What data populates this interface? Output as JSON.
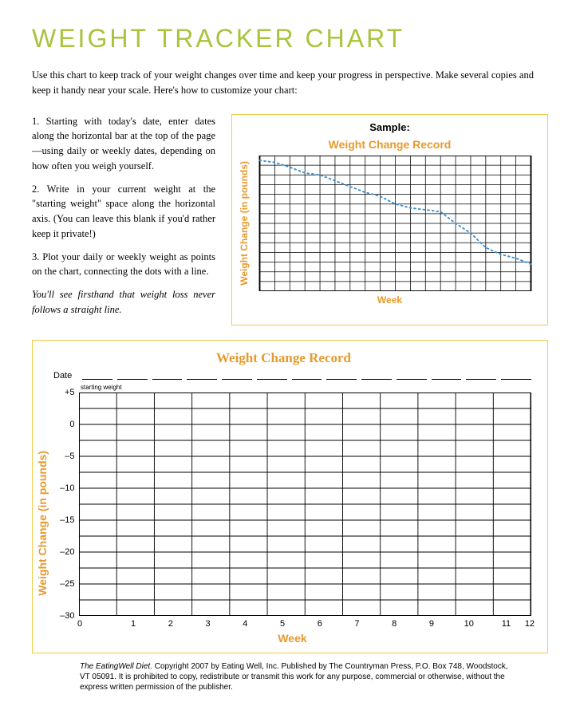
{
  "title": "WEIGHT TRACKER CHART",
  "title_color": "#a8c43c",
  "intro": "Use this chart to keep track of your weight changes over time and keep your progress in perspective. Make several copies and keep it handy near your scale. Here's how to customize your chart:",
  "instructions": {
    "p1": "1. Starting with today's date, enter dates along the horizontal bar at the top of the page—using daily or weekly dates, depending on how often you weigh yourself.",
    "p2": "2. Write in your current weight at the \"starting weight\" space along the horizontal axis. (You can leave this blank if you'd rather keep it private!)",
    "p3": "3. Plot your daily or weekly weight as points on the chart, connecting the dots with a line.",
    "italic": "You'll see firsthand that weight loss never follows a straight line."
  },
  "sample": {
    "label": "Sample:",
    "chart_title": "Weight Change Record",
    "chart_title_color": "#e69a2e",
    "y_axis": "Weight Change (in pounds)",
    "y_axis_color": "#e69a2e",
    "x_axis": "Week",
    "x_axis_color": "#e69a2e",
    "grid": {
      "cols": 18,
      "rows": 14,
      "border_color": "#000000",
      "bg": "#ffffff"
    },
    "line": {
      "color": "#3d8fd1",
      "style": "dotted",
      "width": 2,
      "points": [
        [
          0,
          0.5
        ],
        [
          1,
          0.7
        ],
        [
          2,
          1.2
        ],
        [
          3,
          1.8
        ],
        [
          4,
          2.0
        ],
        [
          5,
          2.6
        ],
        [
          6,
          3.2
        ],
        [
          7,
          3.8
        ],
        [
          8,
          4.2
        ],
        [
          9,
          5.0
        ],
        [
          10,
          5.4
        ],
        [
          11,
          5.6
        ],
        [
          12,
          5.8
        ],
        [
          13,
          7.0
        ],
        [
          14,
          8.0
        ],
        [
          15,
          9.5
        ],
        [
          16,
          10.2
        ],
        [
          17,
          10.6
        ],
        [
          18,
          11.2
        ]
      ]
    }
  },
  "main": {
    "chart_title": "Weight Change Record",
    "chart_title_color": "#e69a2e",
    "date_label": "Date",
    "starting_weight_label": "starting weight",
    "y_axis": "Weight Change (in pounds)",
    "y_axis_color": "#e69a2e",
    "x_axis": "Week",
    "x_axis_color": "#e69a2e",
    "grid": {
      "x_min": 0,
      "x_max": 12,
      "x_step": 1,
      "y_min": -30,
      "y_max": 5,
      "y_step": 5,
      "minor_rows_per_major": 2,
      "border_color": "#000000",
      "bg": "#ffffff"
    },
    "y_ticks": [
      "+5",
      "0",
      "–5",
      "–10",
      "–15",
      "–20",
      "–25",
      "–30"
    ],
    "x_ticks": [
      "0",
      "1",
      "2",
      "3",
      "4",
      "5",
      "6",
      "7",
      "8",
      "9",
      "10",
      "11",
      "12"
    ]
  },
  "box_border_color": "#f0c94a",
  "footer": "The EatingWell Diet. Copyright 2007 by Eating Well, Inc. Published by The Countryman Press, P.O. Box 748, Woodstock, VT 05091. It is prohibited to copy, redistribute or transmit this work for any purpose, commercial or otherwise, without the express written permission of the publisher."
}
